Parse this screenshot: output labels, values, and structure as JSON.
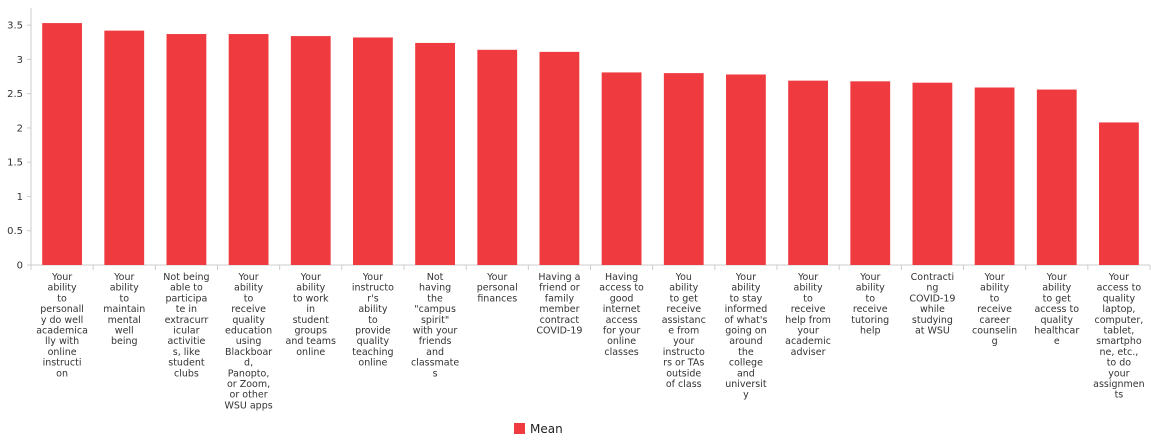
{
  "chart_data": {
    "type": "bar",
    "categories": [
      "Your ability to personally do well academically with online instruction",
      "Your ability to maintain mental well being",
      "Not being able to participate in extracurricular activities, like student clubs",
      "Your ability to receive quality education using Blackboard, Panopto, or Zoom, or other WSU apps",
      "Your ability to work in student groups and teams online",
      "Your instructor's ability to provide quality teaching online",
      "Not having the \"campus spirit\" with your friends and classmates",
      "Your personal finances",
      "Having a friend or family member contract COVID-19",
      "Having access to good internet access for your online classes",
      "You ability to get receive assistance from your instructors or TAs outside of class",
      "Your ability to stay informed of what's going on around the college and university",
      "Your ability to receive help from your academic adviser",
      "Your ability to receive tutoring help",
      "Contracting COVID-19 while studying at WSU",
      "Your ability to receive career counseling",
      "Your ability to get access to quality healthcare",
      "Your access to quality laptop, computer, tablet, smartphone, etc., to do your assignments"
    ],
    "category_lines": [
      [
        "Your",
        "ability",
        "to",
        "personall",
        "y do well",
        "academica",
        "lly with",
        "online",
        "instructi",
        "on"
      ],
      [
        "Your",
        "ability",
        "to",
        "maintain",
        "mental",
        "well",
        "being"
      ],
      [
        "Not being",
        "able to",
        "participa",
        "te in",
        "extracurr",
        "icular",
        "activitie",
        "s, like",
        "student",
        "clubs"
      ],
      [
        "Your",
        "ability",
        "to",
        "receive",
        "quality",
        "education",
        "using",
        "Blackboar",
        "d,",
        "Panopto,",
        "or Zoom,",
        "or other",
        "WSU apps"
      ],
      [
        "Your",
        "ability",
        "to work",
        "in",
        "student",
        "groups",
        "and teams",
        "online"
      ],
      [
        "Your",
        "instructo",
        "r's",
        "ability",
        "to",
        "provide",
        "quality",
        "teaching",
        "online"
      ],
      [
        "Not",
        "having",
        "the",
        "\"campus",
        "spirit\"",
        "with your",
        "friends",
        "and",
        "classmate",
        "s"
      ],
      [
        "Your",
        "personal",
        "finances"
      ],
      [
        "Having a",
        "friend or",
        "family",
        "member",
        "contract",
        "COVID-19"
      ],
      [
        "Having",
        "access to",
        "good",
        "internet",
        "access",
        "for your",
        "online",
        "classes"
      ],
      [
        "You",
        "ability",
        "to get",
        "receive",
        "assistanc",
        "e from",
        "your",
        "instructo",
        "rs or TAs",
        "outside",
        "of class"
      ],
      [
        "Your",
        "ability",
        "to stay",
        "informed",
        "of what's",
        "going on",
        "around",
        "the",
        "college",
        "and",
        "universit",
        "y"
      ],
      [
        "Your",
        "ability",
        "to",
        "receive",
        "help from",
        "your",
        "academic",
        "adviser"
      ],
      [
        "Your",
        "ability",
        "to",
        "receive",
        "tutoring",
        "help"
      ],
      [
        "Contracti",
        "ng",
        "COVID-19",
        "while",
        "studying",
        "at WSU"
      ],
      [
        "Your",
        "ability",
        "to",
        "receive",
        "career",
        "counselin",
        "g"
      ],
      [
        "Your",
        "ability",
        "to get",
        "access to",
        "quality",
        "healthcar",
        "e"
      ],
      [
        "Your",
        "access to",
        "quality",
        "laptop,",
        "computer,",
        "tablet,",
        "smartpho",
        "ne, etc.,",
        "to do",
        "your",
        "assignmen",
        "ts"
      ]
    ],
    "series": [
      {
        "name": "Mean",
        "color": "#ef3a3f",
        "values": [
          3.53,
          3.42,
          3.37,
          3.37,
          3.34,
          3.32,
          3.24,
          3.14,
          3.11,
          2.81,
          2.8,
          2.78,
          2.69,
          2.68,
          2.66,
          2.59,
          2.56,
          2.08
        ]
      }
    ],
    "ylim": [
      0,
      3.75
    ],
    "yticks": [
      "0",
      "0.5",
      "1",
      "1.5",
      "2",
      "2.5",
      "3",
      "3.5"
    ],
    "ytick_values": [
      0,
      0.5,
      1,
      1.5,
      2,
      2.5,
      3,
      3.5
    ],
    "legend": {
      "position": "bottom",
      "label": "Mean"
    },
    "grid": false
  }
}
